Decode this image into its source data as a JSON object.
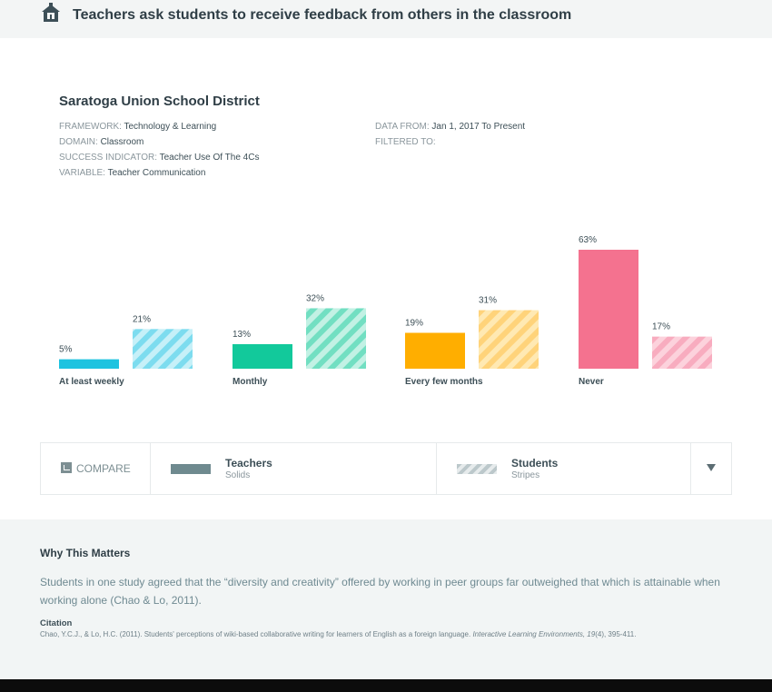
{
  "header": {
    "title": "Teachers ask students to receive feedback from others in the classroom",
    "icon": "school-house-icon"
  },
  "report": {
    "district": "Saratoga Union School District",
    "framework_label": "FRAMEWORK:",
    "framework": "Technology & Learning",
    "domain_label": "DOMAIN:",
    "domain": "Classroom",
    "indicator_label": "SUCCESS INDICATOR:",
    "indicator": "Teacher Use Of The 4Cs",
    "variable_label": "VARIABLE:",
    "variable": "Teacher Communication",
    "data_from_label": "DATA  FROM:",
    "data_from": "Jan 1, 2017 To Present",
    "filtered_label": "FILTERED TO:",
    "filtered": ""
  },
  "chart_data": {
    "type": "bar",
    "categories": [
      "At least weekly",
      "Monthly",
      "Every few months",
      "Never"
    ],
    "series": [
      {
        "name": "Teachers",
        "values": [
          5,
          13,
          19,
          63
        ],
        "style": "solid"
      },
      {
        "name": "Students",
        "values": [
          21,
          32,
          31,
          17
        ],
        "style": "stripes"
      }
    ],
    "value_suffix": "%",
    "category_colors": [
      "#1ec3e0",
      "#12c99b",
      "#ffae00",
      "#f4728f"
    ],
    "stripe_light": [
      "#c6f0f8",
      "#c2f1e4",
      "#ffe9b3",
      "#fcd2dc"
    ],
    "stripe_dark": [
      "#7ddcef",
      "#72dfc2",
      "#ffd37a",
      "#f8acbf"
    ],
    "ylim": [
      0,
      63
    ]
  },
  "legend": {
    "compare_label": "COMPARE",
    "teachers_label": "Teachers",
    "teachers_sub": "Solids",
    "students_label": "Students",
    "students_sub": "Stripes"
  },
  "why": {
    "heading": "Why This Matters",
    "text": "Students in one study agreed that the “diversity and creativity” offered by working in peer groups far outweighed that which is attainable when working alone (Chao & Lo, 2011).",
    "citation_heading": "Citation",
    "citation_authors": "Chao, Y.C.J., & Lo, H.C. (2011). Students' perceptions of wiki-based collaborative writing for learners of English as a foreign language. ",
    "citation_journal": "Interactive Learning Environments, 19",
    "citation_rest": "(4), 395-411."
  }
}
